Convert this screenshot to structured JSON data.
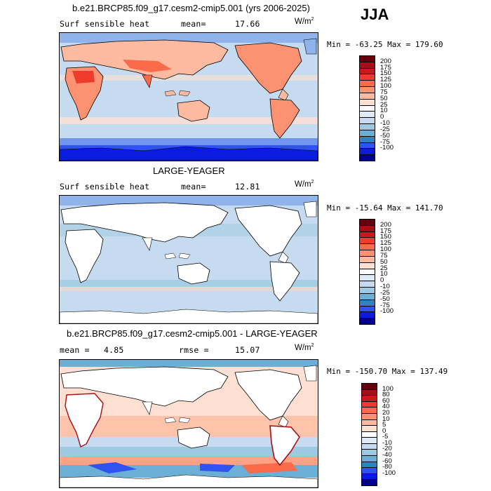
{
  "season": "JJA",
  "units_base": "W/m",
  "units_exp": "2",
  "panels": [
    {
      "title": "b.e21.BRCP85.f09_g17.cesm2-cmip5.001 (yrs 2006-2025)",
      "left_label": "Surf sensible heat",
      "stat_label": "mean=",
      "stat_value": "17.66",
      "minmax": "Min = -63.25  Max = 179.60",
      "colorbar": {
        "labels": [
          "200",
          "175",
          "150",
          "125",
          "100",
          "75",
          "50",
          "25",
          "10",
          "0",
          "-10",
          "-25",
          "-50",
          "-75",
          "-100"
        ],
        "colors": [
          "#67000d",
          "#a50f15",
          "#cb181d",
          "#ef3b2c",
          "#fb6a4a",
          "#fc9272",
          "#fcbba1",
          "#fee0d2",
          "#ffffff",
          "#deebf7",
          "#c6dbef",
          "#9ecae1",
          "#6baed6",
          "#3182bd",
          "#2f52f0",
          "#0a1ce0",
          "#00008b"
        ]
      }
    },
    {
      "title": "LARGE-YEAGER",
      "left_label": "Surf sensible heat",
      "stat_label": "mean=",
      "stat_value": "12.81",
      "minmax": "Min = -15.64  Max = 141.70",
      "colorbar": {
        "labels": [
          "200",
          "175",
          "150",
          "125",
          "100",
          "75",
          "50",
          "25",
          "10",
          "0",
          "-10",
          "-25",
          "-50",
          "-75",
          "-100"
        ],
        "colors": [
          "#67000d",
          "#a50f15",
          "#cb181d",
          "#ef3b2c",
          "#fb6a4a",
          "#fc9272",
          "#fcbba1",
          "#fee0d2",
          "#ffffff",
          "#deebf7",
          "#c6dbef",
          "#9ecae1",
          "#6baed6",
          "#3182bd",
          "#2f52f0",
          "#0a1ce0",
          "#00008b"
        ]
      }
    },
    {
      "title": "b.e21.BRCP85.f09_g17.cesm2-cmip5.001 - LARGE-YEAGER",
      "left_label": "mean =",
      "left_value": "4.85",
      "stat_label": "rmse =",
      "stat_value": "15.07",
      "minmax": "Min = -150.70  Max = 137.49",
      "colorbar": {
        "labels": [
          "100",
          "80",
          "60",
          "40",
          "20",
          "10",
          "5",
          "0",
          "-5",
          "-10",
          "-20",
          "-40",
          "-60",
          "-80",
          "-100"
        ],
        "colors": [
          "#67000d",
          "#a50f15",
          "#cb181d",
          "#ef3b2c",
          "#fb6a4a",
          "#fc9272",
          "#fcbba1",
          "#fee0d2",
          "#ffffff",
          "#deebf7",
          "#c6dbef",
          "#9ecae1",
          "#6baed6",
          "#3182bd",
          "#2f52f0",
          "#0a1ce0",
          "#00008b"
        ]
      }
    }
  ]
}
